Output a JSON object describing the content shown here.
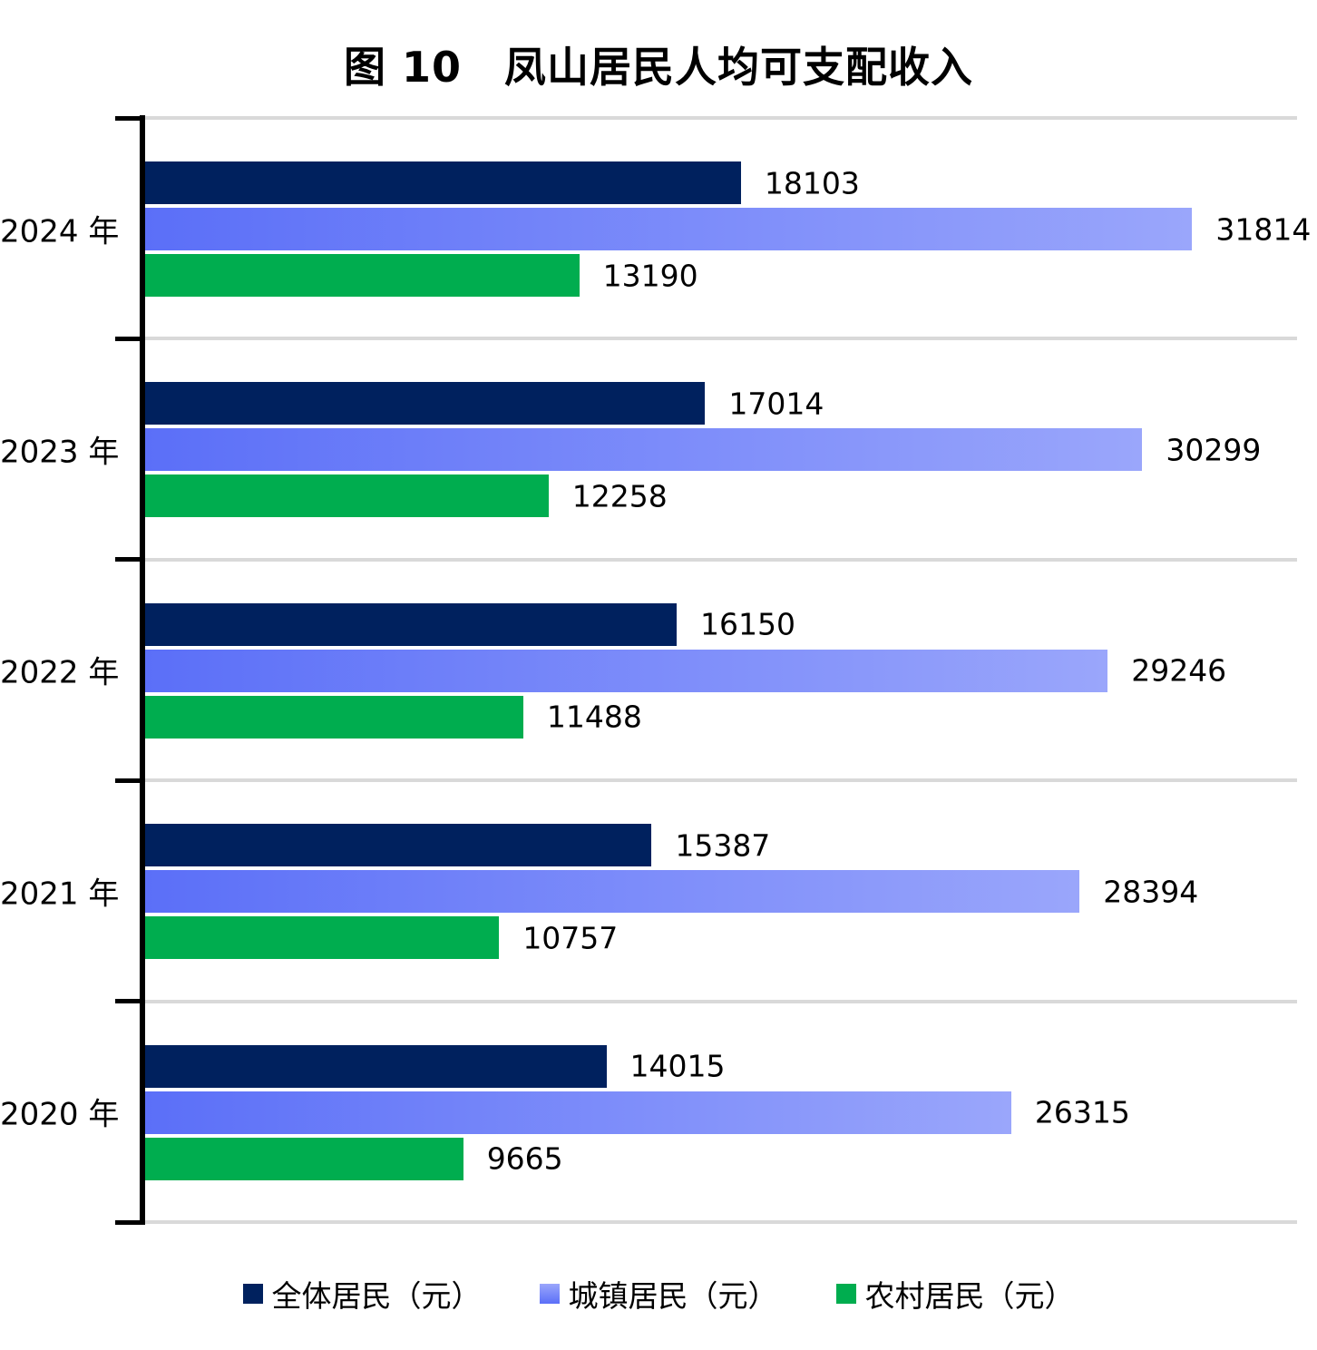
{
  "chart_data": {
    "type": "bar",
    "orientation": "horizontal",
    "title": "图 10　凤山居民人均可支配收入",
    "categories": [
      "2024 年",
      "2023 年",
      "2022 年",
      "2021 年",
      "2020 年"
    ],
    "series": [
      {
        "name": "全体居民（元）",
        "color": "#00215E",
        "values": [
          18103,
          17014,
          16150,
          15387,
          14015
        ]
      },
      {
        "name": "城镇居民（元）",
        "color": "#5B6FF8",
        "color_end": "#9AA6FB",
        "values": [
          31814,
          30299,
          29246,
          28394,
          26315
        ]
      },
      {
        "name": "农村居民（元）",
        "color": "#00AD4F",
        "values": [
          13190,
          12258,
          11488,
          10757,
          9665
        ]
      }
    ],
    "xlim": [
      0,
      35000
    ],
    "grid": "category-separator-lines",
    "legend_position": "bottom",
    "value_labels": "outside-end"
  },
  "colors": {
    "axis": "#000000",
    "gridline": "#D9D9D9",
    "background": "#FFFFFF",
    "text": "#000000"
  }
}
